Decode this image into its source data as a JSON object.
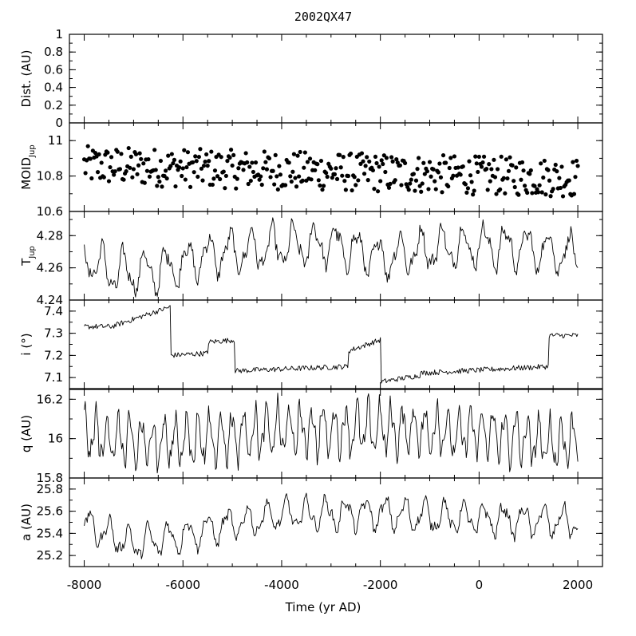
{
  "chart_data": {
    "type": "line",
    "title": "2002QX47",
    "xlabel": "Time (yr AD)",
    "xlim": [
      -8300,
      2500
    ],
    "xticks": [
      -8000,
      -6000,
      -4000,
      -2000,
      0,
      2000
    ],
    "xtick_labels": [
      "-8000",
      "-6000",
      "-4000",
      "-2000",
      "0",
      "2000"
    ],
    "panels": [
      {
        "id": "dist",
        "type": "line",
        "ylabel": "Dist. (AU)",
        "ylim": [
          0,
          1
        ],
        "yticks": [
          0,
          0.2,
          0.4,
          0.6,
          0.8,
          1
        ],
        "ytick_labels": [
          "0",
          "0.2",
          "0.4",
          "0.6",
          "0.8",
          "1"
        ],
        "series": []
      },
      {
        "id": "moid",
        "type": "scatter",
        "ylabel": "MOID",
        "ylabel_sub": "Jup",
        "ylim": [
          10.6,
          11.1
        ],
        "yticks": [
          10.6,
          10.8,
          11.0
        ],
        "ytick_labels": [
          "10.6",
          "10.8",
          "11"
        ],
        "series": [
          {
            "generator": {
              "step": 25,
              "mean": 10.85,
              "amp": 0.11,
              "trend_start": 0.01,
              "trend_end": -0.06
            }
          }
        ]
      },
      {
        "id": "tjup",
        "type": "line",
        "ylabel": "T",
        "ylabel_sub": "Jup",
        "ylim": [
          4.24,
          4.295
        ],
        "yticks": [
          4.24,
          4.26,
          4.28
        ],
        "ytick_labels": [
          "4.24",
          "4.26",
          "4.28"
        ],
        "series": [
          {
            "generator": {
              "step": 20,
              "period": 430,
              "osc_amp": 0.011,
              "noise": 0.004,
              "baseline_x": [
                -8000,
                -7500,
                -6500,
                -5500,
                -4000,
                -3000,
                -2000,
                -1000,
                0,
                1000,
                2000
              ],
              "baseline_y": [
                4.268,
                4.257,
                4.258,
                4.268,
                4.273,
                4.275,
                4.266,
                4.272,
                4.274,
                4.272,
                4.268
              ]
            }
          }
        ]
      },
      {
        "id": "incl",
        "type": "line",
        "ylabel": "i (°)",
        "ylim": [
          7.05,
          7.45
        ],
        "yticks": [
          7.1,
          7.2,
          7.3,
          7.4
        ],
        "ytick_labels": [
          "7.1",
          "7.2",
          "7.3",
          "7.4"
        ],
        "series": [
          {
            "generator": {
              "step": 20,
              "noise": 0.012,
              "segments": [
                {
                  "x0": -8000,
                  "x1": -7450,
                  "y0": 7.33,
                  "y1": 7.33
                },
                {
                  "x0": -7450,
                  "x1": -6250,
                  "y0": 7.33,
                  "y1": 7.42
                },
                {
                  "x0": -6250,
                  "x1": -5500,
                  "y0": 7.2,
                  "y1": 7.21
                },
                {
                  "x0": -5500,
                  "x1": -4950,
                  "y0": 7.26,
                  "y1": 7.27
                },
                {
                  "x0": -4950,
                  "x1": -2650,
                  "y0": 7.13,
                  "y1": 7.15
                },
                {
                  "x0": -2650,
                  "x1": -2000,
                  "y0": 7.22,
                  "y1": 7.27
                },
                {
                  "x0": -2000,
                  "x1": -1200,
                  "y0": 7.08,
                  "y1": 7.11
                },
                {
                  "x0": -1200,
                  "x1": 1400,
                  "y0": 7.12,
                  "y1": 7.15
                },
                {
                  "x0": 1400,
                  "x1": 2000,
                  "y0": 7.29,
                  "y1": 7.29
                }
              ]
            }
          }
        ]
      },
      {
        "id": "q",
        "type": "line",
        "ylabel": "q (AU)",
        "ylim": [
          15.8,
          16.25
        ],
        "yticks": [
          15.8,
          16.0,
          16.2
        ],
        "ytick_labels": [
          "15.8",
          "16",
          "16.2"
        ],
        "series": [
          {
            "generator": {
              "step": 20,
              "period": 230,
              "osc_amp": 0.11,
              "noise": 0.04,
              "baseline_x": [
                -8000,
                -7000,
                -6000,
                -4000,
                -2000,
                0,
                1500,
                2000
              ],
              "baseline_y": [
                16.02,
                15.98,
                15.99,
                16.04,
                16.05,
                16.03,
                15.97,
                16.0
              ]
            }
          }
        ]
      },
      {
        "id": "a",
        "type": "line",
        "ylabel": "a (AU)",
        "ylim": [
          25.1,
          25.9
        ],
        "yticks": [
          25.2,
          25.4,
          25.6,
          25.8
        ],
        "ytick_labels": [
          "25.2",
          "25.4",
          "25.6",
          "25.8"
        ],
        "series": [
          {
            "generator": {
              "step": 20,
              "period": 400,
              "osc_amp": 0.12,
              "noise": 0.04,
              "baseline_x": [
                -8000,
                -7000,
                -6000,
                -5000,
                -4000,
                -2000,
                0,
                2000
              ],
              "baseline_y": [
                25.48,
                25.3,
                25.38,
                25.48,
                25.57,
                25.58,
                25.53,
                25.5
              ]
            }
          }
        ]
      }
    ]
  }
}
